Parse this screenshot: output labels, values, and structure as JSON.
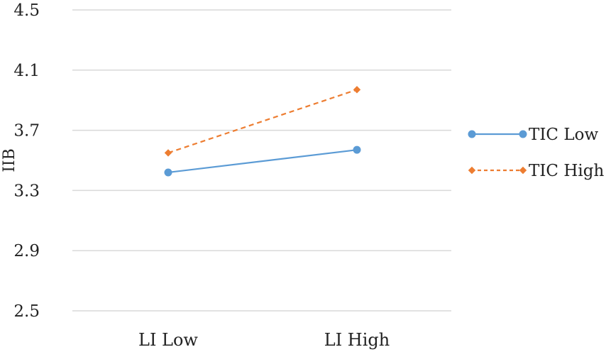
{
  "chart_data": {
    "type": "line",
    "categories": [
      "LI Low",
      "LI High"
    ],
    "series": [
      {
        "name": "TIC Low",
        "values": [
          3.42,
          3.57
        ],
        "color": "#5b9bd5",
        "dash": "solid",
        "marker": "circle"
      },
      {
        "name": "TIC High",
        "values": [
          3.55,
          3.97
        ],
        "color": "#ed7d31",
        "dash": "dashed",
        "marker": "diamond"
      }
    ],
    "title": "",
    "xlabel": "",
    "ylabel": "IIB",
    "ylim": [
      2.5,
      4.5
    ],
    "yticks": [
      "2.5",
      "2.9",
      "3.3",
      "3.7",
      "4.1",
      "4.5"
    ],
    "grid": true,
    "legend_position": "right"
  }
}
